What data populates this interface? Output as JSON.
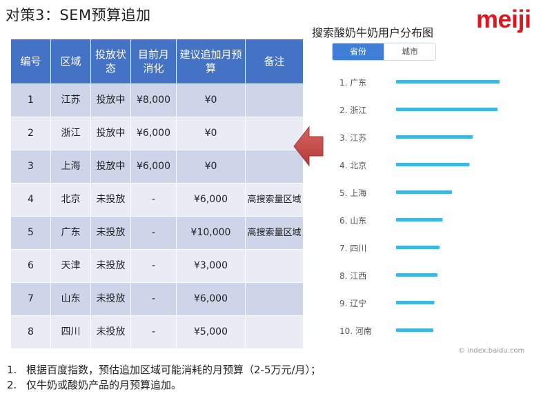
{
  "slide": {
    "title": "对策3：SEM预算追加",
    "logo_text": "meiji",
    "brand_color": "#e3141d"
  },
  "table": {
    "headers": [
      "编号",
      "区域",
      "投放状态",
      "目前月消化",
      "建议追加月预算",
      "备注"
    ],
    "rows": [
      [
        "1",
        "江苏",
        "投放中",
        "¥8,000",
        "¥0",
        ""
      ],
      [
        "2",
        "浙江",
        "投放中",
        "¥6,000",
        "¥0",
        ""
      ],
      [
        "3",
        "上海",
        "投放中",
        "¥6,000",
        "¥0",
        ""
      ],
      [
        "4",
        "北京",
        "未投放",
        "-",
        "¥6,000",
        "高搜索量区域"
      ],
      [
        "5",
        "广东",
        "未投放",
        "-",
        "¥10,000",
        "高搜索量区域"
      ],
      [
        "6",
        "天津",
        "未投放",
        "-",
        "¥3,000",
        ""
      ],
      [
        "7",
        "山东",
        "未投放",
        "-",
        "¥6,000",
        ""
      ],
      [
        "8",
        "四川",
        "未投放",
        "-",
        "¥5,000",
        ""
      ]
    ],
    "header_color": "#4472c4",
    "row_color_a": "#cfd5e8",
    "row_color_b": "#e9ebf5"
  },
  "arrow": {
    "icon": "left-arrow-icon",
    "color": "#c9504f"
  },
  "chart_panel": {
    "title": "搜索酸奶牛奶用户分布图",
    "tabs": [
      {
        "label": "省份",
        "active": true
      },
      {
        "label": "城市",
        "active": false
      }
    ],
    "source": "© index.baidu.com"
  },
  "chart_data": {
    "type": "bar",
    "orientation": "horizontal",
    "categories": [
      "1. 广东",
      "2. 浙江",
      "3. 江苏",
      "4. 北京",
      "5. 上海",
      "6. 山东",
      "7. 四川",
      "8. 江西",
      "9. 辽宁",
      "10. 河南"
    ],
    "values": [
      100,
      98,
      74,
      71,
      54,
      45,
      42,
      40,
      37,
      36
    ],
    "value_unit": "relative share (% of top region, no axis shown)",
    "bar_color": "#3db6e6",
    "title": "搜索酸奶牛奶用户分布图",
    "legend": "none",
    "grid": false
  },
  "notes": [
    {
      "num": "1.",
      "text": "根据百度指数，预估追加区域可能消耗的月预算（2-5万元/月）；"
    },
    {
      "num": "2.",
      "text": "仅牛奶或酸奶产品的月预算追加。"
    }
  ]
}
